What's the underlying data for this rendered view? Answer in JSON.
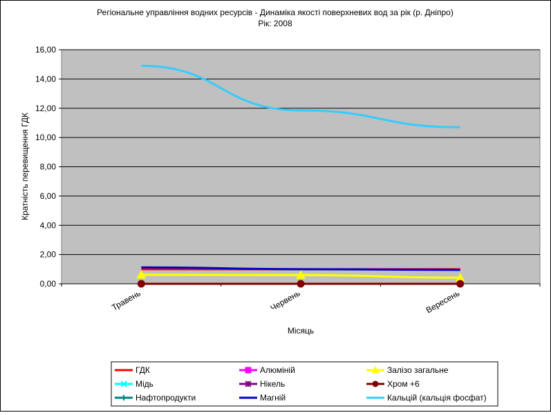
{
  "chart_data": {
    "type": "line",
    "title": "Регіональне управління водних ресурсів - Динаміка якості поверхневих вод за рік (р. Дніпро)",
    "subtitle": "Рік: 2008",
    "xlabel": "Місяць",
    "ylabel": "Кратність перевищення ГДК",
    "categories": [
      "Травень",
      "Червень",
      "Вересень"
    ],
    "ylim": [
      0,
      16
    ],
    "yticks": [
      "0,00",
      "2,00",
      "4,00",
      "6,00",
      "8,00",
      "10,00",
      "12,00",
      "14,00",
      "16,00"
    ],
    "grid": true,
    "legend_position": "bottom",
    "plot_background": "#c0c0c0",
    "series": [
      {
        "name": "ГДК",
        "values": [
          1.0,
          1.0,
          1.0
        ],
        "color": "#ff0000",
        "marker": "none"
      },
      {
        "name": "Алюміній",
        "values": [
          null,
          null,
          null
        ],
        "color": "#ff00ff",
        "marker": "square"
      },
      {
        "name": "Залізо загальне",
        "values": [
          0.62,
          0.6,
          0.42
        ],
        "color": "#ffff00",
        "marker": "triangle"
      },
      {
        "name": "Мідь",
        "values": [
          null,
          null,
          null
        ],
        "color": "#00ffff",
        "marker": "x"
      },
      {
        "name": "Нікель",
        "values": [
          null,
          null,
          null
        ],
        "color": "#800080",
        "marker": "star"
      },
      {
        "name": "Хром +6",
        "values": [
          0.0,
          0.0,
          0.0
        ],
        "color": "#800000",
        "marker": "circle"
      },
      {
        "name": "Нафтопродукти",
        "values": [
          0.0,
          0.0,
          0.0
        ],
        "color": "#008080",
        "marker": "plus"
      },
      {
        "name": "Магній",
        "values": [
          1.12,
          1.0,
          0.95
        ],
        "color": "#0000cc",
        "marker": "none"
      },
      {
        "name": "Кальцій (кальція фосфат)",
        "values": [
          14.9,
          11.85,
          10.7
        ],
        "color": "#33ccff",
        "marker": "none"
      }
    ]
  }
}
